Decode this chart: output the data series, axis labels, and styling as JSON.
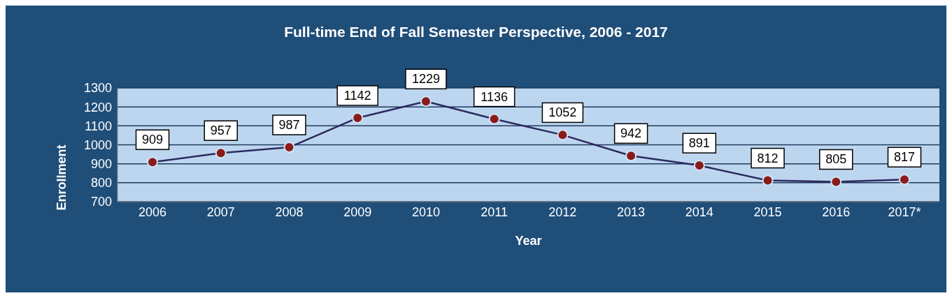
{
  "chart_data": {
    "type": "line",
    "title": "Full-time End of Fall Semester Perspective, 2006 - 2017",
    "xlabel": "Year",
    "ylabel": "Enrollment",
    "categories": [
      "2006",
      "2007",
      "2008",
      "2009",
      "2010",
      "2011",
      "2012",
      "2013",
      "2014",
      "2015",
      "2016",
      "2017*"
    ],
    "series": [
      {
        "color": "#2b2b5e",
        "values": [
          909,
          957,
          987,
          1142,
          1229,
          1136,
          1052,
          942,
          891,
          812,
          805,
          817
        ]
      }
    ],
    "ylim": [
      700,
      1300
    ],
    "yticks": [
      700,
      800,
      900,
      1000,
      1100,
      1200,
      1300
    ],
    "grid": "y",
    "marker": "circle",
    "line_style": "solid",
    "data_labels": true
  }
}
